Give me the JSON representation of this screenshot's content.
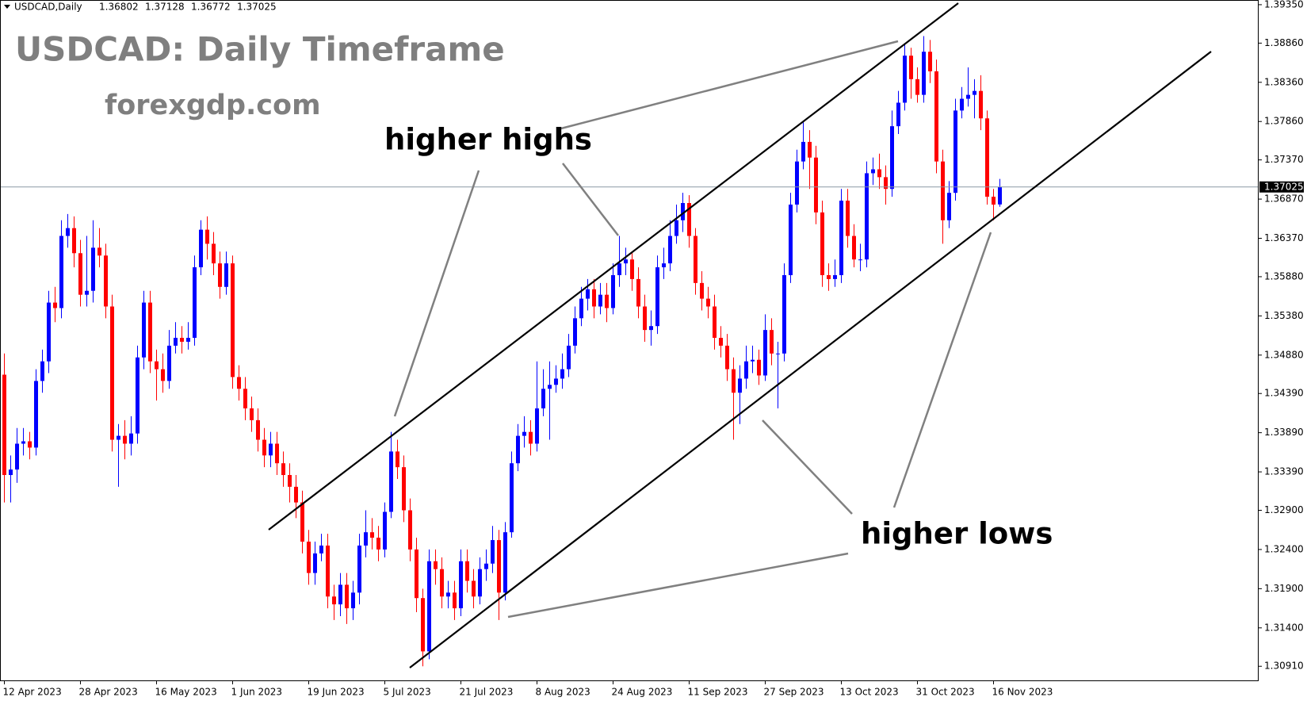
{
  "chart_data": {
    "type": "candlestick",
    "symbol": "USDCAD,Daily",
    "title": "USDCAD: Daily Timeframe",
    "subtitle": "forexgdp.com",
    "annotations": [
      "higher highs",
      "higher lows"
    ],
    "up_color": "#0000ff",
    "down_color": "#ff0000",
    "categories": [
      "12 Apr 2023",
      null,
      null,
      null,
      null,
      null,
      null,
      null,
      null,
      null,
      null,
      null,
      "28 Apr 2023",
      null,
      null,
      null,
      null,
      null,
      null,
      null,
      null,
      null,
      null,
      null,
      "16 May 2023",
      null,
      null,
      null,
      null,
      null,
      null,
      null,
      null,
      null,
      null,
      null,
      "1 Jun 2023",
      null,
      null,
      null,
      null,
      null,
      null,
      null,
      null,
      null,
      null,
      null,
      "19 Jun 2023",
      null,
      null,
      null,
      null,
      null,
      null,
      null,
      null,
      null,
      null,
      null,
      "5 Jul 2023",
      null,
      null,
      null,
      null,
      null,
      null,
      null,
      null,
      null,
      null,
      null,
      "21 Jul 2023",
      null,
      null,
      null,
      null,
      null,
      null,
      null,
      null,
      null,
      null,
      null,
      "8 Aug 2023",
      null,
      null,
      null,
      null,
      null,
      null,
      null,
      null,
      null,
      null,
      null,
      "24 Aug 2023",
      null,
      null,
      null,
      null,
      null,
      null,
      null,
      null,
      null,
      null,
      null,
      "11 Sep 2023",
      null,
      null,
      null,
      null,
      null,
      null,
      null,
      null,
      null,
      null,
      null,
      "27 Sep 2023",
      null,
      null,
      null,
      null,
      null,
      null,
      null,
      null,
      null,
      null,
      null,
      "13 Oct 2023",
      null,
      null,
      null,
      null,
      null,
      null,
      null,
      null,
      null,
      null,
      null,
      "31 Oct 2023",
      null,
      null,
      null,
      null,
      null,
      null,
      null,
      null,
      null,
      null,
      null,
      "16 Nov 2023",
      null
    ],
    "open": [
      1.3463,
      1.3335,
      1.3342,
      1.3375,
      1.3378,
      1.337,
      1.3455,
      1.348,
      1.3555,
      1.3548,
      1.364,
      1.365,
      1.3618,
      1.3565,
      1.357,
      1.3625,
      1.3615,
      1.355,
      1.338,
      1.3385,
      1.3375,
      1.3388,
      1.3485,
      1.3555,
      1.348,
      1.347,
      1.3455,
      1.35,
      1.351,
      1.3505,
      1.351,
      1.36,
      1.3648,
      1.363,
      1.3605,
      1.3575,
      1.3605,
      1.346,
      1.3445,
      1.342,
      1.3405,
      1.338,
      1.336,
      1.3375,
      1.335,
      1.3335,
      1.332,
      1.33,
      1.325,
      1.321,
      1.3235,
      1.3245,
      1.318,
      1.317,
      1.3195,
      1.3165,
      1.3185,
      1.3245,
      1.3262,
      1.3255,
      1.324,
      1.3288,
      1.3365,
      1.3345,
      1.329,
      1.324,
      1.3178,
      1.311,
      1.3225,
      1.3215,
      1.318,
      1.3185,
      1.3165,
      1.3225,
      1.32,
      1.318,
      1.3215,
      1.3222,
      1.3252,
      1.3185,
      1.3262,
      1.335,
      1.3385,
      1.339,
      1.3375,
      1.342,
      1.3445,
      1.345,
      1.3458,
      1.347,
      1.35,
      1.3535,
      1.356,
      1.3572,
      1.355,
      1.3565,
      1.3548,
      1.359,
      1.3605,
      1.361,
      1.3585,
      1.355,
      1.352,
      1.3525,
      1.36,
      1.3605,
      1.364,
      1.366,
      1.3682,
      1.364,
      1.358,
      1.356,
      1.355,
      1.351,
      1.35,
      1.347,
      1.344,
      1.3458,
      1.348,
      1.3482,
      1.3462,
      1.352,
      1.349,
      1.349,
      1.359,
      1.368,
      1.3735,
      1.376,
      1.374,
      1.367,
      1.359,
      1.3585,
      1.359,
      1.3685,
      1.364,
      1.361,
      1.361,
      1.372,
      1.3725,
      1.3715,
      1.37,
      1.378,
      1.381,
      1.387,
      1.384,
      1.382,
      1.3875,
      1.385,
      1.3735,
      1.366,
      1.3695,
      1.38,
      1.3815,
      1.382,
      1.3825,
      1.379,
      1.369,
      1.36802
    ],
    "high": [
      1.349,
      1.336,
      1.3395,
      1.3395,
      1.339,
      1.347,
      1.3495,
      1.357,
      1.3575,
      1.366,
      1.3668,
      1.3665,
      1.3635,
      1.364,
      1.366,
      1.365,
      1.363,
      1.3565,
      1.34,
      1.3405,
      1.341,
      1.35,
      1.357,
      1.357,
      1.3495,
      1.349,
      1.352,
      1.353,
      1.3525,
      1.353,
      1.3615,
      1.366,
      1.3665,
      1.3645,
      1.362,
      1.362,
      1.3615,
      1.3475,
      1.346,
      1.3435,
      1.342,
      1.3395,
      1.339,
      1.339,
      1.3365,
      1.335,
      1.3335,
      1.3315,
      1.3265,
      1.325,
      1.326,
      1.326,
      1.3195,
      1.321,
      1.321,
      1.32,
      1.326,
      1.329,
      1.328,
      1.327,
      1.33,
      1.339,
      1.338,
      1.336,
      1.3305,
      1.3255,
      1.319,
      1.324,
      1.324,
      1.323,
      1.32,
      1.32,
      1.324,
      1.324,
      1.3215,
      1.323,
      1.324,
      1.327,
      1.3265,
      1.3275,
      1.3365,
      1.34,
      1.341,
      1.3405,
      1.348,
      1.347,
      1.348,
      1.3475,
      1.349,
      1.3515,
      1.355,
      1.3575,
      1.3585,
      1.3585,
      1.358,
      1.358,
      1.3605,
      1.364,
      1.3625,
      1.362,
      1.36,
      1.3565,
      1.3545,
      1.3615,
      1.3625,
      1.366,
      1.368,
      1.3695,
      1.3692,
      1.365,
      1.3595,
      1.3575,
      1.3565,
      1.3525,
      1.3515,
      1.3485,
      1.3475,
      1.35,
      1.35,
      1.3495,
      1.354,
      1.3535,
      1.3505,
      1.3605,
      1.3695,
      1.375,
      1.3785,
      1.3775,
      1.3755,
      1.3685,
      1.3605,
      1.361,
      1.37,
      1.37,
      1.3655,
      1.363,
      1.3735,
      1.374,
      1.3745,
      1.373,
      1.38,
      1.3825,
      1.3885,
      1.388,
      1.3855,
      1.3895,
      1.389,
      1.3865,
      1.375,
      1.371,
      1.3815,
      1.383,
      1.3855,
      1.384,
      1.3845,
      1.38,
      1.37,
      1.37128
    ],
    "low": [
      1.33,
      1.33,
      1.3325,
      1.336,
      1.3355,
      1.336,
      1.344,
      1.3465,
      1.353,
      1.3535,
      1.3625,
      1.36,
      1.355,
      1.355,
      1.3555,
      1.36,
      1.3535,
      1.3365,
      1.332,
      1.3355,
      1.336,
      1.3375,
      1.347,
      1.3465,
      1.343,
      1.344,
      1.3445,
      1.349,
      1.349,
      1.3495,
      1.35,
      1.359,
      1.361,
      1.359,
      1.356,
      1.3565,
      1.3445,
      1.343,
      1.3405,
      1.339,
      1.3365,
      1.3345,
      1.3345,
      1.3335,
      1.332,
      1.33,
      1.328,
      1.3235,
      1.3195,
      1.3195,
      1.3225,
      1.3165,
      1.315,
      1.3155,
      1.3145,
      1.315,
      1.317,
      1.323,
      1.324,
      1.3225,
      1.323,
      1.328,
      1.333,
      1.3275,
      1.3225,
      1.316,
      1.3091,
      1.31,
      1.3195,
      1.3165,
      1.3165,
      1.315,
      1.3155,
      1.3185,
      1.3165,
      1.317,
      1.32,
      1.321,
      1.315,
      1.3175,
      1.3255,
      1.334,
      1.337,
      1.336,
      1.3365,
      1.341,
      1.338,
      1.344,
      1.3445,
      1.346,
      1.349,
      1.3525,
      1.3545,
      1.3535,
      1.354,
      1.353,
      1.354,
      1.3575,
      1.359,
      1.357,
      1.3535,
      1.3505,
      1.35,
      1.3515,
      1.3585,
      1.3595,
      1.363,
      1.3645,
      1.3625,
      1.3565,
      1.3545,
      1.3535,
      1.3495,
      1.3485,
      1.3455,
      1.338,
      1.34,
      1.3445,
      1.3465,
      1.345,
      1.3455,
      1.3475,
      1.342,
      1.348,
      1.358,
      1.367,
      1.3725,
      1.37,
      1.3655,
      1.3575,
      1.357,
      1.3575,
      1.358,
      1.3625,
      1.36,
      1.3595,
      1.36,
      1.3705,
      1.37,
      1.368,
      1.369,
      1.377,
      1.38,
      1.3815,
      1.381,
      1.381,
      1.3835,
      1.372,
      1.363,
      1.365,
      1.3685,
      1.379,
      1.3805,
      1.379,
      1.3775,
      1.368,
      1.366,
      1.36772
    ],
    "close": [
      1.3335,
      1.3342,
      1.3375,
      1.3378,
      1.337,
      1.3455,
      1.348,
      1.3555,
      1.3548,
      1.364,
      1.365,
      1.3618,
      1.3565,
      1.357,
      1.3625,
      1.3615,
      1.355,
      1.338,
      1.3385,
      1.3375,
      1.3388,
      1.3485,
      1.3555,
      1.348,
      1.347,
      1.3455,
      1.35,
      1.351,
      1.3505,
      1.351,
      1.36,
      1.3648,
      1.363,
      1.3605,
      1.3575,
      1.3605,
      1.346,
      1.3445,
      1.342,
      1.3405,
      1.338,
      1.336,
      1.3375,
      1.335,
      1.3335,
      1.332,
      1.33,
      1.325,
      1.321,
      1.3235,
      1.3245,
      1.318,
      1.317,
      1.3195,
      1.3165,
      1.3185,
      1.3245,
      1.3262,
      1.3255,
      1.324,
      1.3288,
      1.3365,
      1.3345,
      1.329,
      1.324,
      1.3178,
      1.311,
      1.3225,
      1.3215,
      1.318,
      1.3185,
      1.3165,
      1.3225,
      1.32,
      1.318,
      1.3215,
      1.3222,
      1.3252,
      1.3185,
      1.3262,
      1.335,
      1.3385,
      1.339,
      1.3375,
      1.342,
      1.3445,
      1.345,
      1.3458,
      1.347,
      1.35,
      1.3535,
      1.356,
      1.3572,
      1.355,
      1.3565,
      1.3548,
      1.359,
      1.3605,
      1.361,
      1.3585,
      1.355,
      1.352,
      1.3525,
      1.36,
      1.3605,
      1.364,
      1.366,
      1.3682,
      1.364,
      1.358,
      1.356,
      1.355,
      1.351,
      1.35,
      1.347,
      1.344,
      1.3458,
      1.348,
      1.3482,
      1.3462,
      1.352,
      1.349,
      1.349,
      1.359,
      1.368,
      1.3735,
      1.376,
      1.374,
      1.367,
      1.359,
      1.3585,
      1.359,
      1.3685,
      1.364,
      1.361,
      1.361,
      1.372,
      1.3725,
      1.3715,
      1.37,
      1.378,
      1.381,
      1.387,
      1.384,
      1.382,
      1.3875,
      1.385,
      1.3735,
      1.366,
      1.3695,
      1.38,
      1.3815,
      1.382,
      1.3825,
      1.379,
      1.369,
      1.368,
      1.37025
    ],
    "ylim": [
      1.3072,
      1.3941
    ],
    "yticks": [
      {
        "value": 1.3935,
        "label": "1.39350"
      },
      {
        "value": 1.3886,
        "label": "1.38860"
      },
      {
        "value": 1.3836,
        "label": "1.38360"
      },
      {
        "value": 1.3786,
        "label": "1.37860"
      },
      {
        "value": 1.3737,
        "label": "1.37370"
      },
      {
        "value": 1.3687,
        "label": "1.36870"
      },
      {
        "value": 1.3637,
        "label": "1.36370"
      },
      {
        "value": 1.3588,
        "label": "1.35880"
      },
      {
        "value": 1.3538,
        "label": "1.35380"
      },
      {
        "value": 1.3488,
        "label": "1.34880"
      },
      {
        "value": 1.3439,
        "label": "1.34390"
      },
      {
        "value": 1.3389,
        "label": "1.33890"
      },
      {
        "value": 1.3339,
        "label": "1.33390"
      },
      {
        "value": 1.329,
        "label": "1.32900"
      },
      {
        "value": 1.324,
        "label": "1.32400"
      },
      {
        "value": 1.319,
        "label": "1.31900"
      },
      {
        "value": 1.314,
        "label": "1.31400"
      },
      {
        "value": 1.3091,
        "label": "1.30910"
      }
    ],
    "grid": false
  }
}
